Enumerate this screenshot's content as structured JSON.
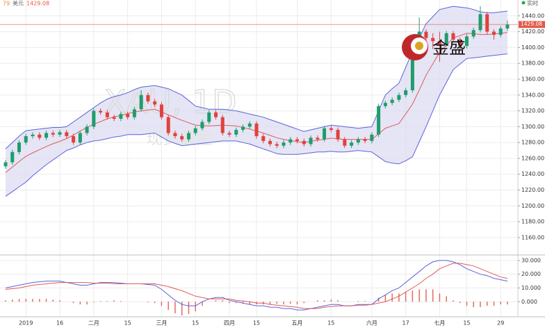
{
  "header": {
    "symbol_fragment": "79",
    "currency": "美元",
    "price": 1429.08,
    "status": "实时"
  },
  "watermark": {
    "symbol": "XAU, 1D",
    "name": "现货黄金"
  },
  "logo": {
    "text": "金盛"
  },
  "chart_data": {
    "type": "candlestick",
    "categories": [
      null,
      null,
      null,
      "2019",
      null,
      null,
      null,
      null,
      "16",
      null,
      null,
      null,
      null,
      "二月",
      null,
      null,
      null,
      null,
      "15",
      null,
      null,
      null,
      null,
      "三月",
      null,
      null,
      null,
      null,
      "15",
      null,
      null,
      null,
      null,
      "四月",
      null,
      null,
      null,
      "15",
      null,
      null,
      null,
      null,
      null,
      "五月",
      null,
      null,
      null,
      null,
      "15",
      null,
      null,
      null,
      null,
      null,
      "六月",
      null,
      null,
      null,
      null,
      "17",
      null,
      null,
      null,
      null,
      "七月",
      null,
      null,
      null,
      "15",
      null,
      null,
      null,
      null,
      "29",
      null
    ],
    "open": [
      1250,
      1255,
      1268,
      1280,
      1288,
      1290,
      1286,
      1292,
      1290,
      1293,
      1288,
      1280,
      1292,
      1300,
      1320,
      1318,
      1312,
      1310,
      1316,
      1312,
      1322,
      1340,
      1332,
      1328,
      1312,
      1292,
      1288,
      1284,
      1292,
      1298,
      1306,
      1318,
      1312,
      1292,
      1290,
      1296,
      1300,
      1304,
      1288,
      1282,
      1278,
      1276,
      1280,
      1284,
      1282,
      1278,
      1286,
      1284,
      1298,
      1296,
      1284,
      1276,
      1280,
      1284,
      1282,
      1290,
      1326,
      1330,
      1334,
      1340,
      1346,
      1398,
      1420,
      1412,
      1408,
      1404,
      1418,
      1410,
      1402,
      1414,
      1422,
      1442,
      1420,
      1416,
      1424
    ],
    "high": [
      1258,
      1271,
      1283,
      1291,
      1293,
      1293,
      1295,
      1295,
      1296,
      1296,
      1291,
      1295,
      1303,
      1323,
      1323,
      1321,
      1315,
      1319,
      1319,
      1325,
      1346,
      1343,
      1335,
      1331,
      1315,
      1295,
      1291,
      1295,
      1301,
      1309,
      1321,
      1321,
      1315,
      1295,
      1299,
      1303,
      1307,
      1307,
      1291,
      1285,
      1281,
      1283,
      1287,
      1287,
      1285,
      1289,
      1289,
      1301,
      1301,
      1299,
      1287,
      1283,
      1287,
      1287,
      1293,
      1329,
      1333,
      1337,
      1343,
      1349,
      1401,
      1438,
      1423,
      1418,
      1420,
      1421,
      1421,
      1413,
      1417,
      1425,
      1452,
      1445,
      1423,
      1427,
      1434
    ],
    "low": [
      1247,
      1252,
      1265,
      1277,
      1285,
      1283,
      1283,
      1287,
      1287,
      1285,
      1277,
      1277,
      1289,
      1297,
      1315,
      1309,
      1307,
      1307,
      1309,
      1309,
      1319,
      1329,
      1325,
      1309,
      1289,
      1285,
      1281,
      1281,
      1289,
      1295,
      1303,
      1309,
      1289,
      1287,
      1287,
      1293,
      1297,
      1285,
      1279,
      1275,
      1273,
      1273,
      1277,
      1279,
      1275,
      1275,
      1281,
      1281,
      1293,
      1281,
      1273,
      1273,
      1277,
      1279,
      1279,
      1287,
      1323,
      1327,
      1331,
      1337,
      1343,
      1395,
      1400,
      1398,
      1382,
      1401,
      1407,
      1395,
      1399,
      1411,
      1419,
      1417,
      1410,
      1413,
      1421
    ],
    "close": [
      1255,
      1268,
      1280,
      1288,
      1290,
      1286,
      1292,
      1290,
      1293,
      1288,
      1280,
      1292,
      1300,
      1320,
      1318,
      1312,
      1310,
      1316,
      1312,
      1322,
      1340,
      1332,
      1328,
      1312,
      1292,
      1288,
      1284,
      1292,
      1298,
      1306,
      1318,
      1312,
      1292,
      1290,
      1296,
      1300,
      1304,
      1288,
      1282,
      1278,
      1276,
      1280,
      1284,
      1282,
      1278,
      1286,
      1284,
      1298,
      1296,
      1284,
      1276,
      1280,
      1284,
      1282,
      1290,
      1326,
      1330,
      1334,
      1340,
      1346,
      1398,
      1420,
      1412,
      1408,
      1404,
      1418,
      1410,
      1402,
      1414,
      1422,
      1442,
      1420,
      1416,
      1424,
      1429
    ],
    "up_color": "#1f9d6b",
    "down_color": "#e0413c",
    "ylim": [
      1138,
      1460
    ],
    "yticks": [
      {
        "value": 1160,
        "label": "1160.00"
      },
      {
        "value": 1180,
        "label": "1180.00"
      },
      {
        "value": 1200,
        "label": "1200.00"
      },
      {
        "value": 1220,
        "label": "1220.00"
      },
      {
        "value": 1240,
        "label": "1240.00"
      },
      {
        "value": 1260,
        "label": "1260.00"
      },
      {
        "value": 1280,
        "label": "1280.00"
      },
      {
        "value": 1300,
        "label": "1300.00"
      },
      {
        "value": 1320,
        "label": "1320.00"
      },
      {
        "value": 1340,
        "label": "1340.00"
      },
      {
        "value": 1360,
        "label": "1360.00"
      },
      {
        "value": 1380,
        "label": "1380.00"
      },
      {
        "value": 1400,
        "label": "1400.00"
      },
      {
        "value": 1420,
        "label": "1420.00"
      },
      {
        "value": 1440,
        "label": "1440.00"
      }
    ],
    "grid": true,
    "last_price": 1429.08,
    "last_price_color": "#e05a4a",
    "bands": {
      "band_color": "#5b63d9",
      "fill": "#dcdcf2",
      "middle_color": "#e05a5a",
      "upper": [
        1272,
        1280,
        1288,
        1295,
        1296,
        1297,
        1298,
        1299,
        1299,
        1300,
        1306,
        1312,
        1318,
        1324,
        1330,
        1335,
        1338,
        1340,
        1343,
        1347,
        1350,
        1351,
        1352,
        1350,
        1348,
        1344,
        1340,
        1333,
        1326,
        1324,
        1322,
        1322,
        1322,
        1321,
        1320,
        1318,
        1316,
        1314,
        1312,
        1309,
        1306,
        1303,
        1300,
        1297,
        1294,
        1296,
        1298,
        1300,
        1302,
        1301,
        1300,
        1299,
        1298,
        1299,
        1300,
        1320,
        1340,
        1348,
        1355,
        1375,
        1395,
        1412,
        1430,
        1439,
        1448,
        1450,
        1452,
        1451,
        1450,
        1448,
        1445,
        1444,
        1444,
        1445,
        1446
      ],
      "middle": [
        1242,
        1249,
        1256,
        1262.5,
        1267,
        1271,
        1275,
        1278.5,
        1281.5,
        1285,
        1289.5,
        1294.5,
        1299,
        1303,
        1306.5,
        1310,
        1312.5,
        1314,
        1316.5,
        1318.5,
        1320,
        1321,
        1322,
        1318.5,
        1315,
        1311.5,
        1308,
        1305,
        1302,
        1301.5,
        1301,
        1301.5,
        1302,
        1301.5,
        1301,
        1299,
        1297,
        1294.5,
        1292,
        1289,
        1286,
        1284,
        1282.5,
        1281,
        1280,
        1281.5,
        1283,
        1284,
        1285.5,
        1284.5,
        1284,
        1284,
        1284,
        1284,
        1284,
        1291,
        1298,
        1301,
        1304,
        1316,
        1328.5,
        1346.5,
        1365,
        1379.5,
        1394,
        1403,
        1412,
        1415,
        1418,
        1417.5,
        1416.5,
        1416.5,
        1417,
        1418,
        1419
      ],
      "lower": [
        1212,
        1218,
        1224,
        1230,
        1238,
        1245,
        1252,
        1258,
        1264,
        1270,
        1273,
        1277,
        1280,
        1282,
        1283,
        1285,
        1287,
        1288,
        1290,
        1290,
        1290,
        1291,
        1292,
        1287,
        1282,
        1279,
        1276,
        1277,
        1278,
        1279,
        1280,
        1281,
        1282,
        1282,
        1282,
        1280,
        1278,
        1275,
        1272,
        1269,
        1266,
        1265,
        1265,
        1265,
        1266,
        1267,
        1268,
        1268,
        1269,
        1268,
        1268,
        1269,
        1270,
        1269,
        1268,
        1262,
        1256,
        1254,
        1253,
        1257,
        1262,
        1281,
        1300,
        1320,
        1340,
        1356,
        1372,
        1379,
        1386,
        1387,
        1388,
        1389,
        1390,
        1391,
        1392
      ]
    },
    "macd": {
      "ylim": [
        -11,
        33
      ],
      "yticks": [
        {
          "value": 0,
          "label": "0.000"
        },
        {
          "value": 10,
          "label": "10.000"
        },
        {
          "value": 20,
          "label": "20.000"
        },
        {
          "value": 30,
          "label": "30.000"
        }
      ],
      "dif": {
        "color": "#5b63d9",
        "values": [
          10,
          11,
          12,
          13,
          14,
          14.5,
          15,
          15,
          15,
          14,
          13,
          12,
          12,
          13,
          14,
          14,
          14,
          13.5,
          13,
          13,
          13,
          12.5,
          12,
          9,
          5,
          1,
          -2,
          -3,
          -3,
          0,
          2,
          3,
          3,
          1,
          0,
          -1,
          -2,
          -3,
          -3,
          -4,
          -4,
          -5,
          -5,
          -6,
          -6,
          -5,
          -4,
          -3,
          -2,
          -2,
          -3,
          -3,
          -2,
          -2,
          -2,
          2,
          5,
          8,
          10,
          14,
          18,
          22,
          26,
          29,
          30,
          30,
          29,
          27,
          24,
          22,
          20,
          19,
          17,
          16,
          15
        ]
      },
      "dea": {
        "color": "#e05a5a",
        "values": [
          9,
          9.5,
          10,
          11,
          12,
          12.5,
          13,
          13.5,
          14,
          14,
          14,
          14,
          14,
          13.5,
          13.5,
          13.5,
          13,
          13,
          13,
          13,
          13,
          13,
          13,
          12,
          11,
          9.5,
          8,
          6,
          4,
          3,
          2,
          2,
          2,
          2,
          1,
          0.5,
          0,
          -1,
          -1,
          -2,
          -2.5,
          -3,
          -3.5,
          -4,
          -5,
          -5,
          -5,
          -4,
          -3.5,
          -3,
          -3,
          -3,
          -2.5,
          -2.5,
          -2,
          -1,
          0,
          2,
          4,
          7,
          10,
          13,
          17,
          20,
          24,
          26,
          28,
          28,
          27,
          26,
          24,
          22,
          20,
          18,
          17
        ]
      },
      "hist": {
        "color": "#e06a60",
        "values": [
          1,
          1.5,
          2,
          2,
          2,
          2,
          2,
          1.5,
          1,
          0,
          -1,
          -2,
          -2,
          -0.5,
          0.5,
          0.5,
          1,
          0.5,
          0,
          0,
          0,
          -0.5,
          -1,
          -3,
          -6,
          -8.5,
          -10,
          -9,
          -7,
          -3,
          0,
          1,
          1,
          -1,
          -1,
          -1.5,
          -2,
          -2,
          -2,
          -2,
          -1.5,
          -2,
          -1.5,
          -2,
          -1,
          0,
          1,
          1,
          1.5,
          1,
          0,
          0,
          0.5,
          0.5,
          0,
          3,
          5,
          6,
          6,
          7,
          8,
          9,
          9,
          9,
          6,
          4,
          1,
          -1,
          -3,
          -4,
          -4,
          -3,
          -3,
          -2,
          -2
        ]
      }
    }
  }
}
